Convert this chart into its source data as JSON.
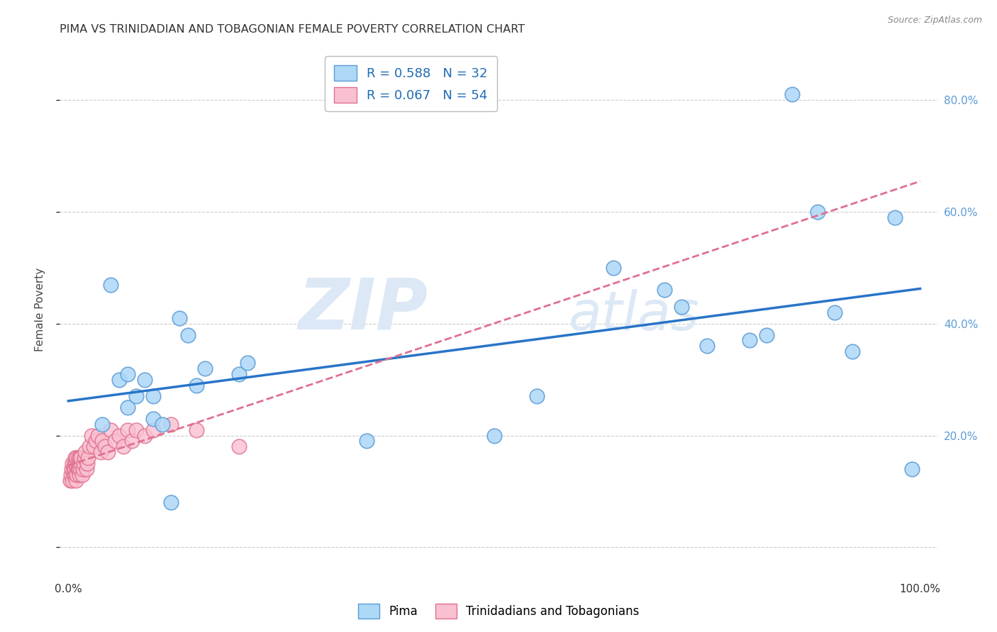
{
  "title": "PIMA VS TRINIDADIAN AND TOBAGONIAN FEMALE POVERTY CORRELATION CHART",
  "source": "Source: ZipAtlas.com",
  "ylabel": "Female Poverty",
  "xlim": [
    -0.01,
    1.02
  ],
  "ylim": [
    -0.05,
    0.9
  ],
  "ytick_positions": [
    0.0,
    0.2,
    0.4,
    0.6,
    0.8
  ],
  "yticklabels_right": [
    "20.0%",
    "40.0%",
    "60.0%",
    "80.0%"
  ],
  "ytick_right_positions": [
    0.2,
    0.4,
    0.6,
    0.8
  ],
  "legend1_label": "R = 0.588   N = 32",
  "legend2_label": "R = 0.067   N = 54",
  "pima_color": "#add8f7",
  "pima_edge_color": "#5b9bd5",
  "trinidadian_color": "#f9c0d0",
  "trinidadian_edge_color": "#e07090",
  "regression_blue_color": "#2874c8",
  "regression_pink_color": "#e07090",
  "background_color": "#ffffff",
  "grid_color": "#cccccc",
  "watermark_zip": "ZIP",
  "watermark_atlas": "atlas",
  "pima_x": [
    0.04,
    0.05,
    0.06,
    0.07,
    0.07,
    0.08,
    0.09,
    0.1,
    0.1,
    0.11,
    0.12,
    0.13,
    0.14,
    0.15,
    0.16,
    0.2,
    0.21,
    0.35,
    0.5,
    0.55,
    0.64,
    0.7,
    0.72,
    0.75,
    0.8,
    0.82,
    0.85,
    0.88,
    0.9,
    0.92,
    0.97,
    0.99
  ],
  "pima_y": [
    0.22,
    0.47,
    0.3,
    0.25,
    0.31,
    0.27,
    0.3,
    0.23,
    0.27,
    0.22,
    0.08,
    0.41,
    0.38,
    0.29,
    0.32,
    0.31,
    0.33,
    0.19,
    0.2,
    0.27,
    0.5,
    0.46,
    0.43,
    0.36,
    0.37,
    0.38,
    0.81,
    0.6,
    0.42,
    0.35,
    0.59,
    0.14
  ],
  "trinidadian_x": [
    0.002,
    0.003,
    0.004,
    0.005,
    0.005,
    0.006,
    0.006,
    0.007,
    0.007,
    0.008,
    0.008,
    0.009,
    0.009,
    0.01,
    0.01,
    0.011,
    0.011,
    0.012,
    0.012,
    0.013,
    0.013,
    0.014,
    0.014,
    0.015,
    0.015,
    0.016,
    0.017,
    0.018,
    0.019,
    0.02,
    0.021,
    0.022,
    0.023,
    0.025,
    0.027,
    0.03,
    0.032,
    0.035,
    0.038,
    0.04,
    0.043,
    0.046,
    0.05,
    0.055,
    0.06,
    0.065,
    0.07,
    0.075,
    0.08,
    0.09,
    0.1,
    0.12,
    0.15,
    0.2
  ],
  "trinidadian_y": [
    0.12,
    0.13,
    0.14,
    0.12,
    0.15,
    0.13,
    0.14,
    0.14,
    0.15,
    0.13,
    0.16,
    0.12,
    0.15,
    0.13,
    0.16,
    0.14,
    0.15,
    0.14,
    0.16,
    0.13,
    0.15,
    0.16,
    0.14,
    0.15,
    0.16,
    0.13,
    0.14,
    0.15,
    0.16,
    0.17,
    0.14,
    0.15,
    0.16,
    0.18,
    0.2,
    0.18,
    0.19,
    0.2,
    0.17,
    0.19,
    0.18,
    0.17,
    0.21,
    0.19,
    0.2,
    0.18,
    0.21,
    0.19,
    0.21,
    0.2,
    0.21,
    0.22,
    0.21,
    0.18
  ]
}
